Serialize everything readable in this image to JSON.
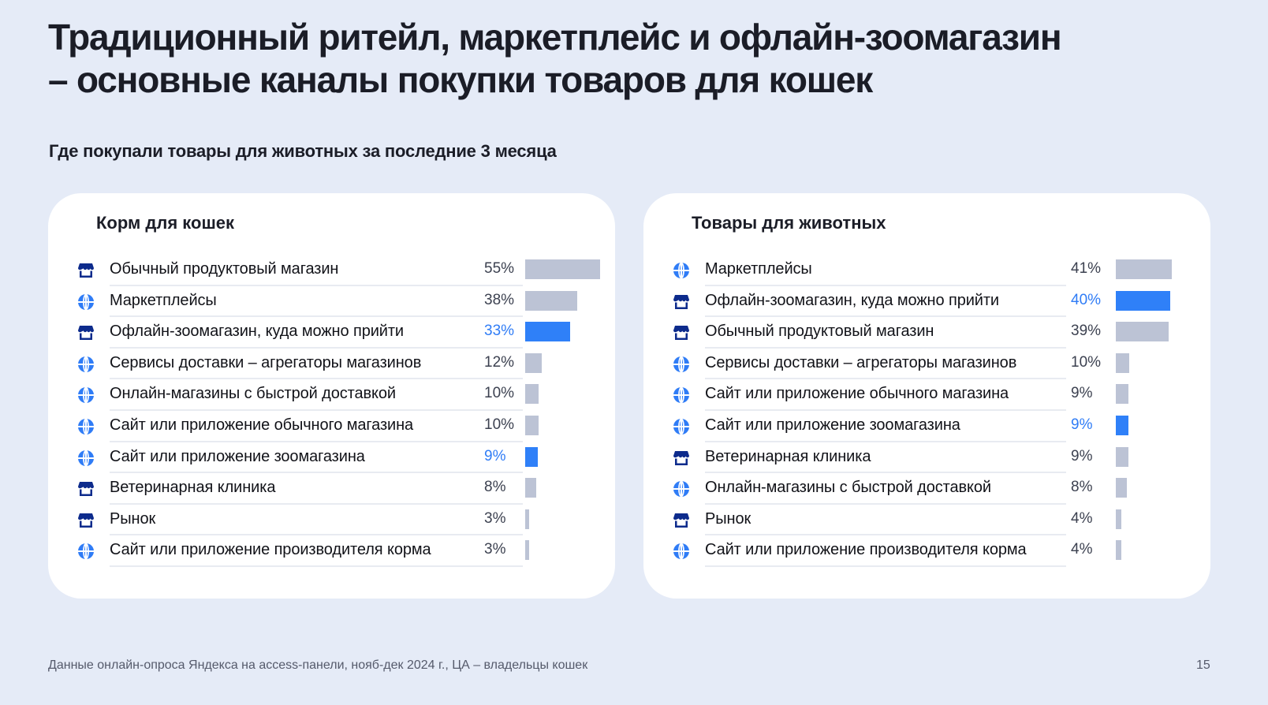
{
  "title": {
    "line1": "Традиционный ритейл, маркетплейс и офлайн-зоомагазин",
    "line2": "– основные каналы покупки товаров для кошек"
  },
  "subtitle": "Где покупали товары для животных за последние 3 месяца",
  "colors": {
    "highlight": "#2f80f8",
    "bar": "#bcc3d5",
    "store_icon": "#0d2b8c",
    "globe_icon": "#2f7cf6",
    "background": "#e5ebf7"
  },
  "cards": [
    {
      "title": "Корм для кошек",
      "rows": [
        {
          "icon": "store-icon",
          "label": "Обычный продуктовый магазин",
          "pct": "55%",
          "value": 55,
          "highlight": false
        },
        {
          "icon": "globe-icon",
          "label": "Маркетплейсы",
          "pct": "38%",
          "value": 38,
          "highlight": false
        },
        {
          "icon": "store-icon",
          "label": "Офлайн-зоомагазин, куда можно прийти",
          "pct": "33%",
          "value": 33,
          "highlight": true
        },
        {
          "icon": "globe-icon",
          "label": "Сервисы доставки – агрегаторы магазинов",
          "pct": "12%",
          "value": 12,
          "highlight": false
        },
        {
          "icon": "globe-icon",
          "label": "Онлайн-магазины с быстрой доставкой",
          "pct": "10%",
          "value": 10,
          "highlight": false
        },
        {
          "icon": "globe-icon",
          "label": "Сайт или приложение обычного магазина",
          "pct": "10%",
          "value": 10,
          "highlight": false
        },
        {
          "icon": "globe-icon",
          "label": "Сайт или приложение зоомагазина",
          "pct": "9%",
          "value": 9,
          "highlight": true
        },
        {
          "icon": "store-icon",
          "label": "Ветеринарная клиника",
          "pct": "8%",
          "value": 8,
          "highlight": false
        },
        {
          "icon": "store-icon",
          "label": "Рынок",
          "pct": "3%",
          "value": 3,
          "highlight": false
        },
        {
          "icon": "globe-icon",
          "label": "Сайт или приложение производителя корма",
          "pct": "3%",
          "value": 3,
          "highlight": false
        }
      ]
    },
    {
      "title": "Товары для животных",
      "rows": [
        {
          "icon": "globe-icon",
          "label": "Маркетплейсы",
          "pct": "41%",
          "value": 41,
          "highlight": false
        },
        {
          "icon": "store-icon",
          "label": "Офлайн-зоомагазин, куда можно прийти",
          "pct": "40%",
          "value": 40,
          "highlight": true
        },
        {
          "icon": "store-icon",
          "label": "Обычный продуктовый магазин",
          "pct": "39%",
          "value": 39,
          "highlight": false
        },
        {
          "icon": "globe-icon",
          "label": "Сервисы доставки – агрегаторы магазинов",
          "pct": "10%",
          "value": 10,
          "highlight": false
        },
        {
          "icon": "globe-icon",
          "label": "Сайт или приложение обычного магазина",
          "pct": "9%",
          "value": 9,
          "highlight": false
        },
        {
          "icon": "globe-icon",
          "label": "Сайт или приложение зоомагазина",
          "pct": "9%",
          "value": 9,
          "highlight": true
        },
        {
          "icon": "store-icon",
          "label": "Ветеринарная клиника",
          "pct": "9%",
          "value": 9,
          "highlight": false
        },
        {
          "icon": "globe-icon",
          "label": "Онлайн-магазины с быстрой доставкой",
          "pct": "8%",
          "value": 8,
          "highlight": false
        },
        {
          "icon": "store-icon",
          "label": "Рынок",
          "pct": "4%",
          "value": 4,
          "highlight": false
        },
        {
          "icon": "globe-icon",
          "label": "Сайт или приложение производителя корма",
          "pct": "4%",
          "value": 4,
          "highlight": false
        }
      ]
    }
  ],
  "footer": "Данные онлайн-опроса Яндекса на access-панели, нояб-дек 2024 г., ЦА – владельцы кошек",
  "page_number": "15",
  "chart_data": [
    {
      "type": "bar",
      "orientation": "horizontal",
      "title": "Корм для кошек",
      "subtitle": "Где покупали товары для животных за последние 3 месяца",
      "categories": [
        "Обычный продуктовый магазин",
        "Маркетплейсы",
        "Офлайн-зоомагазин, куда можно прийти",
        "Сервисы доставки – агрегаторы магазинов",
        "Онлайн-магазины с быстрой доставкой",
        "Сайт или приложение обычного магазина",
        "Сайт или приложение зоомагазина",
        "Ветеринарная клиника",
        "Рынок",
        "Сайт или приложение производителя корма"
      ],
      "values": [
        55,
        38,
        33,
        12,
        10,
        10,
        9,
        8,
        3,
        3
      ],
      "unit": "%",
      "highlighted": [
        "Офлайн-зоомагазин, куда можно прийти",
        "Сайт или приложение зоомагазина"
      ],
      "grid": false,
      "legend": null
    },
    {
      "type": "bar",
      "orientation": "horizontal",
      "title": "Товары для животных",
      "subtitle": "Где покупали товары для животных за последние 3 месяца",
      "categories": [
        "Маркетплейсы",
        "Офлайн-зоомагазин, куда можно прийти",
        "Обычный продуктовый магазин",
        "Сервисы доставки – агрегаторы магазинов",
        "Сайт или приложение обычного магазина",
        "Сайт или приложение зоомагазина",
        "Ветеринарная клиника",
        "Онлайн-магазины с быстрой доставкой",
        "Рынок",
        "Сайт или приложение производителя корма"
      ],
      "values": [
        41,
        40,
        39,
        10,
        9,
        9,
        9,
        8,
        4,
        4
      ],
      "unit": "%",
      "highlighted": [
        "Офлайн-зоомагазин, куда можно прийти",
        "Сайт или приложение зоомагазина"
      ],
      "grid": false,
      "legend": null
    }
  ]
}
